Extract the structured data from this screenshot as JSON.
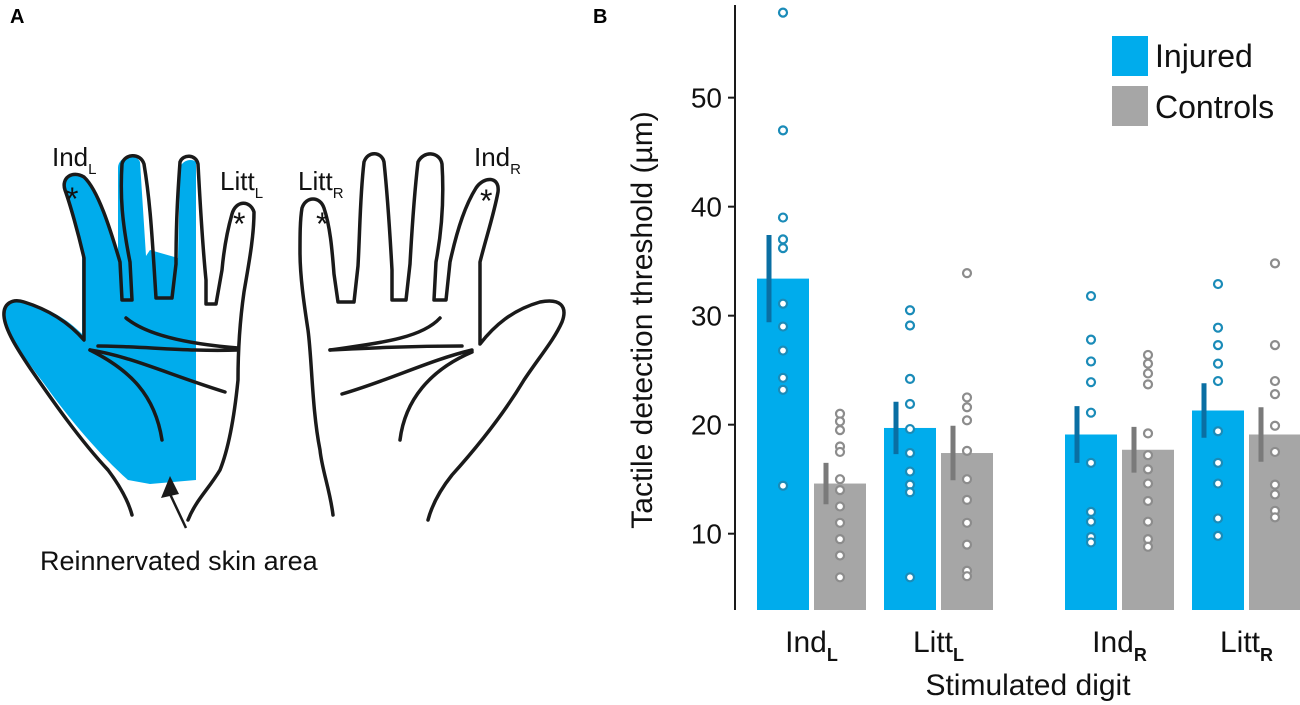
{
  "panel_a": {
    "letter": "A",
    "labels": {
      "ind_left": "Ind",
      "ind_left_sub": "L",
      "litt_left": "Litt",
      "litt_left_sub": "L",
      "litt_right": "Litt",
      "litt_right_sub": "R",
      "ind_right": "Ind",
      "ind_right_sub": "R"
    },
    "stim_marker": "*",
    "arrow_label": "Reinnervated skin area",
    "colors": {
      "reinnervated": "#00acec",
      "outline": "#1a1a1a"
    }
  },
  "panel_b": {
    "letter": "B"
  },
  "chart_data": {
    "type": "bar",
    "ylabel": "Tactile detection threshold (µm)",
    "xlabel": "Stimulated digit",
    "ylim": [
      3,
      58.5
    ],
    "yticks": [
      10,
      20,
      30,
      40,
      50
    ],
    "categories": [
      {
        "base": "Ind",
        "sub": "L"
      },
      {
        "base": "Litt",
        "sub": "L"
      },
      {
        "base": "Ind",
        "sub": "R"
      },
      {
        "base": "Litt",
        "sub": "R"
      }
    ],
    "legend": {
      "position": "top-right"
    },
    "series": [
      {
        "name": "Injured",
        "color": "#00acec",
        "point_color": "#1a8bb8",
        "errbar_color": "#0a6fa3",
        "values": [
          33.4,
          19.7,
          19.1,
          21.3
        ],
        "error": [
          4.0,
          2.4,
          2.6,
          2.5
        ],
        "points": [
          [
            57.8,
            47.0,
            39.0,
            37.0,
            36.2,
            31.1,
            29.0,
            26.8,
            24.3,
            23.2,
            14.4
          ],
          [
            30.5,
            29.1,
            24.2,
            21.9,
            19.6,
            17.4,
            15.7,
            14.5,
            13.8,
            6.0
          ],
          [
            31.8,
            27.8,
            25.8,
            23.9,
            21.1,
            16.5,
            12.0,
            11.1,
            9.7,
            9.2
          ],
          [
            32.9,
            28.9,
            27.3,
            25.6,
            24.0,
            19.4,
            16.5,
            14.6,
            11.4,
            9.8
          ]
        ]
      },
      {
        "name": "Controls",
        "color": "#a6a6a6",
        "point_color": "#8c8c8c",
        "errbar_color": "#7a7a7a",
        "values": [
          14.6,
          17.4,
          17.7,
          19.1
        ],
        "error": [
          1.9,
          2.5,
          2.1,
          2.5
        ],
        "points": [
          [
            21.0,
            20.3,
            19.5,
            18.0,
            17.5,
            15.0,
            14.0,
            12.5,
            11.0,
            9.5,
            8.0,
            6.0
          ],
          [
            33.9,
            22.5,
            21.6,
            20.4,
            17.6,
            15.0,
            13.1,
            11.0,
            9.0,
            6.6,
            6.1
          ],
          [
            26.4,
            25.6,
            24.7,
            23.7,
            19.2,
            17.2,
            15.9,
            14.6,
            13.0,
            11.1,
            9.5,
            8.8
          ],
          [
            34.8,
            27.3,
            24.0,
            22.8,
            19.9,
            17.5,
            14.5,
            13.6,
            12.1,
            11.5
          ]
        ]
      }
    ]
  }
}
